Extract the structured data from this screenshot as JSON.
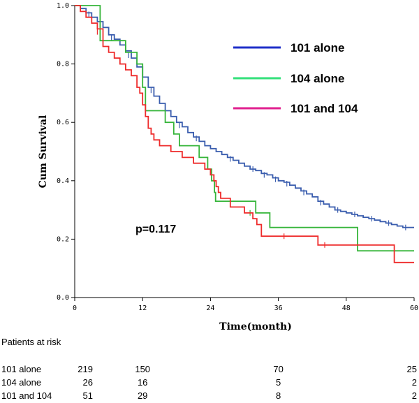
{
  "chart_data": {
    "type": "line",
    "subtype": "kaplan-meier-step",
    "xlabel": "Time(month)",
    "ylabel": "Cum Survival",
    "xlim": [
      0,
      60
    ],
    "ylim": [
      0,
      1
    ],
    "xticks": [
      "0",
      "12",
      "24",
      "36",
      "48",
      "60"
    ],
    "yticks": [
      "0.0",
      "0.2",
      "0.4",
      "0.6",
      "0.8",
      "1.0"
    ],
    "annotation": "p=0.117",
    "legend_position": "top-right",
    "grid": false,
    "series": [
      {
        "name": "101 alone",
        "color": "#3a5dae",
        "legend_color": "#1f2fc8",
        "points": [
          [
            0,
            1.0
          ],
          [
            1,
            0.99
          ],
          [
            2,
            0.975
          ],
          [
            3,
            0.96
          ],
          [
            4,
            0.945
          ],
          [
            5,
            0.925
          ],
          [
            6,
            0.9
          ],
          [
            7,
            0.885
          ],
          [
            8,
            0.865
          ],
          [
            9,
            0.845
          ],
          [
            10,
            0.82
          ],
          [
            11,
            0.79
          ],
          [
            12,
            0.755
          ],
          [
            13,
            0.72
          ],
          [
            14,
            0.69
          ],
          [
            15,
            0.665
          ],
          [
            16,
            0.64
          ],
          [
            17,
            0.62
          ],
          [
            18,
            0.6
          ],
          [
            19,
            0.585
          ],
          [
            20,
            0.565
          ],
          [
            21,
            0.55
          ],
          [
            22,
            0.535
          ],
          [
            23,
            0.52
          ],
          [
            24,
            0.51
          ],
          [
            25,
            0.5
          ],
          [
            26,
            0.49
          ],
          [
            27,
            0.48
          ],
          [
            28,
            0.47
          ],
          [
            29,
            0.46
          ],
          [
            30,
            0.45
          ],
          [
            31,
            0.44
          ],
          [
            32,
            0.435
          ],
          [
            33,
            0.425
          ],
          [
            34,
            0.42
          ],
          [
            35,
            0.41
          ],
          [
            36,
            0.4
          ],
          [
            37,
            0.395
          ],
          [
            38,
            0.385
          ],
          [
            39,
            0.375
          ],
          [
            40,
            0.365
          ],
          [
            41,
            0.355
          ],
          [
            42,
            0.345
          ],
          [
            43,
            0.33
          ],
          [
            44,
            0.32
          ],
          [
            45,
            0.31
          ],
          [
            46,
            0.3
          ],
          [
            47,
            0.295
          ],
          [
            48,
            0.29
          ],
          [
            49,
            0.285
          ],
          [
            50,
            0.28
          ],
          [
            51,
            0.275
          ],
          [
            52,
            0.27
          ],
          [
            53,
            0.265
          ],
          [
            54,
            0.26
          ],
          [
            55,
            0.255
          ],
          [
            56,
            0.25
          ],
          [
            57,
            0.245
          ],
          [
            58,
            0.24
          ],
          [
            60,
            0.24
          ]
        ],
        "censors": [
          [
            2.5,
            0.97
          ],
          [
            6.5,
            0.89
          ],
          [
            9.5,
            0.83
          ],
          [
            13.5,
            0.71
          ],
          [
            18.5,
            0.59
          ],
          [
            21.5,
            0.545
          ],
          [
            27.5,
            0.475
          ],
          [
            31.5,
            0.44
          ],
          [
            33.5,
            0.42
          ],
          [
            35.5,
            0.405
          ],
          [
            37.5,
            0.39
          ],
          [
            40.5,
            0.36
          ],
          [
            43.5,
            0.325
          ],
          [
            46.5,
            0.3
          ],
          [
            49.5,
            0.285
          ],
          [
            52.5,
            0.27
          ],
          [
            55.5,
            0.255
          ],
          [
            58.5,
            0.24
          ]
        ]
      },
      {
        "name": "104 alone",
        "color": "#36b53a",
        "legend_color": "#33e07a",
        "points": [
          [
            0,
            1.0
          ],
          [
            4.5,
            0.88
          ],
          [
            9,
            0.84
          ],
          [
            11,
            0.8
          ],
          [
            12,
            0.72
          ],
          [
            12.5,
            0.64
          ],
          [
            16,
            0.6
          ],
          [
            17.5,
            0.56
          ],
          [
            18.5,
            0.52
          ],
          [
            22,
            0.48
          ],
          [
            23.5,
            0.44
          ],
          [
            24.2,
            0.4
          ],
          [
            24.7,
            0.36
          ],
          [
            24.9,
            0.33
          ],
          [
            32,
            0.29
          ],
          [
            34.5,
            0.24
          ],
          [
            50,
            0.16
          ],
          [
            60,
            0.16
          ]
        ],
        "censors": [
          [
            31,
            0.29
          ]
        ]
      },
      {
        "name": "101 and 104",
        "color": "#ee2b2b",
        "legend_color": "#e0208f",
        "points": [
          [
            0,
            1.0
          ],
          [
            1,
            0.98
          ],
          [
            2,
            0.96
          ],
          [
            3,
            0.94
          ],
          [
            4,
            0.92
          ],
          [
            5,
            0.86
          ],
          [
            6,
            0.84
          ],
          [
            7,
            0.82
          ],
          [
            8,
            0.8
          ],
          [
            9,
            0.78
          ],
          [
            10,
            0.76
          ],
          [
            11,
            0.72
          ],
          [
            11.5,
            0.7
          ],
          [
            12,
            0.66
          ],
          [
            12.5,
            0.62
          ],
          [
            13,
            0.58
          ],
          [
            13.5,
            0.56
          ],
          [
            14,
            0.54
          ],
          [
            15,
            0.52
          ],
          [
            17,
            0.5
          ],
          [
            19,
            0.48
          ],
          [
            21,
            0.46
          ],
          [
            23,
            0.44
          ],
          [
            24,
            0.42
          ],
          [
            24.6,
            0.4
          ],
          [
            25,
            0.38
          ],
          [
            25.4,
            0.36
          ],
          [
            25.8,
            0.34
          ],
          [
            27.5,
            0.31
          ],
          [
            30,
            0.29
          ],
          [
            31.5,
            0.27
          ],
          [
            32.2,
            0.25
          ],
          [
            33,
            0.21
          ],
          [
            43,
            0.18
          ],
          [
            56.5,
            0.12
          ],
          [
            60,
            0.12
          ]
        ],
        "censors": [
          [
            4,
            0.91
          ],
          [
            37,
            0.21
          ],
          [
            44.2,
            0.18
          ]
        ]
      }
    ]
  },
  "risk_table": {
    "title": "Patients at risk",
    "rows": [
      {
        "label": "101 alone",
        "values": [
          "219",
          "150",
          "70",
          "25"
        ]
      },
      {
        "label": "104 alone",
        "values": [
          "26",
          "16",
          "5",
          "2"
        ]
      },
      {
        "label": "101 and 104",
        "values": [
          "51",
          "29",
          "8",
          "2"
        ]
      }
    ]
  }
}
